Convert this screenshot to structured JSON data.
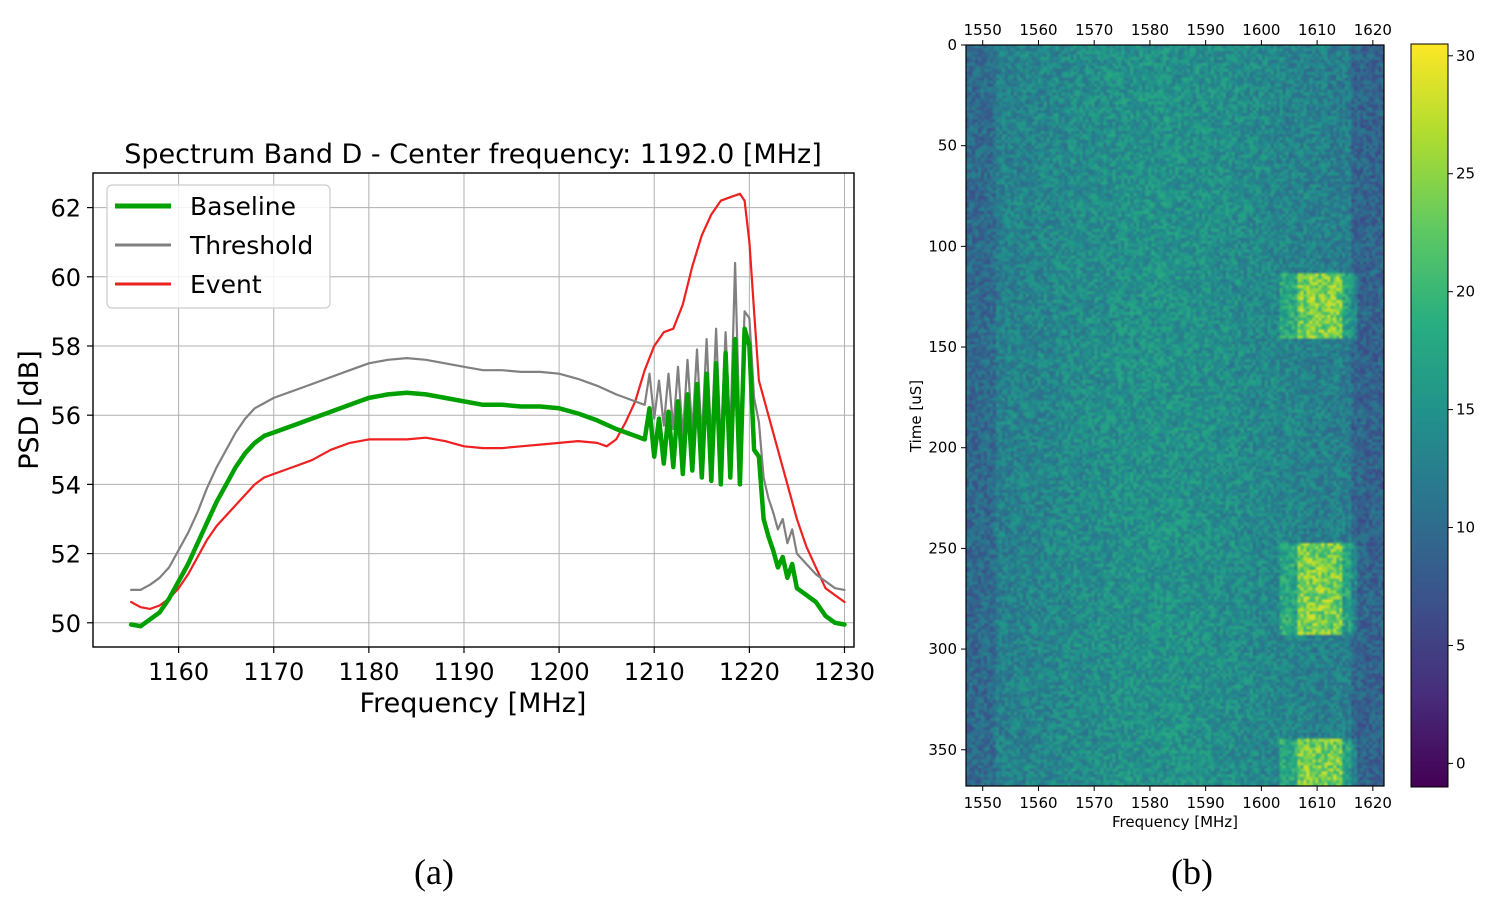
{
  "chart_data": [
    {
      "panel_label": "(a)",
      "type": "line",
      "title": "Spectrum Band D - Center frequency: 1192.0 [MHz]",
      "xlabel": "Frequency [MHz]",
      "ylabel": "PSD [dB]",
      "xlim": [
        1151,
        1231
      ],
      "ylim": [
        49.3,
        63
      ],
      "xticks": [
        1160,
        1170,
        1180,
        1190,
        1200,
        1210,
        1220,
        1230
      ],
      "yticks": [
        50,
        52,
        54,
        56,
        58,
        60,
        62
      ],
      "grid": true,
      "legend_position": "top-left",
      "series": [
        {
          "name": "Baseline",
          "color": "#00a000",
          "width": 4.5,
          "x": [
            1155,
            1156,
            1157,
            1158,
            1159,
            1160,
            1161,
            1162,
            1163,
            1164,
            1165,
            1166,
            1167,
            1168,
            1169,
            1170,
            1172,
            1174,
            1176,
            1178,
            1180,
            1182,
            1184,
            1186,
            1188,
            1190,
            1192,
            1194,
            1196,
            1198,
            1200,
            1202,
            1204,
            1206,
            1208,
            1209,
            1209.5,
            1210,
            1210.5,
            1211,
            1211.5,
            1212,
            1212.5,
            1213,
            1213.5,
            1214,
            1214.5,
            1215,
            1215.5,
            1216,
            1216.5,
            1217,
            1217.5,
            1218,
            1218.5,
            1219,
            1219.5,
            1220,
            1220.5,
            1221,
            1221.5,
            1222,
            1222.5,
            1223,
            1223.5,
            1224,
            1224.5,
            1225,
            1226,
            1227,
            1228,
            1229,
            1230
          ],
          "y": [
            49.95,
            49.9,
            50.1,
            50.3,
            50.7,
            51.2,
            51.7,
            52.3,
            52.9,
            53.5,
            54.0,
            54.5,
            54.9,
            55.2,
            55.4,
            55.5,
            55.7,
            55.9,
            56.1,
            56.3,
            56.5,
            56.6,
            56.65,
            56.6,
            56.5,
            56.4,
            56.3,
            56.3,
            56.25,
            56.25,
            56.2,
            56.05,
            55.85,
            55.6,
            55.4,
            55.3,
            56.2,
            54.8,
            55.9,
            54.6,
            56.1,
            54.5,
            56.4,
            54.3,
            56.6,
            54.4,
            56.9,
            54.2,
            57.2,
            54.1,
            57.5,
            54.0,
            57.8,
            54.2,
            58.2,
            54.0,
            58.5,
            58.0,
            55.0,
            54.8,
            53.0,
            52.5,
            52.1,
            51.6,
            51.9,
            51.3,
            51.7,
            51.0,
            50.8,
            50.6,
            50.2,
            50.0,
            49.95
          ]
        },
        {
          "name": "Threshold",
          "color": "#808080",
          "width": 2.2,
          "x": [
            1155,
            1156,
            1157,
            1158,
            1159,
            1160,
            1161,
            1162,
            1163,
            1164,
            1165,
            1166,
            1167,
            1168,
            1169,
            1170,
            1172,
            1174,
            1176,
            1178,
            1180,
            1182,
            1184,
            1186,
            1188,
            1190,
            1192,
            1194,
            1196,
            1198,
            1200,
            1202,
            1204,
            1206,
            1208,
            1209,
            1209.5,
            1210,
            1210.5,
            1211,
            1211.5,
            1212,
            1212.5,
            1213,
            1213.5,
            1214,
            1214.5,
            1215,
            1215.5,
            1216,
            1216.5,
            1217,
            1217.5,
            1218,
            1218.5,
            1219,
            1219.5,
            1220,
            1220.5,
            1221,
            1221.5,
            1222,
            1222.5,
            1223,
            1223.5,
            1224,
            1224.5,
            1225,
            1226,
            1227,
            1228,
            1229,
            1230
          ],
          "y": [
            50.95,
            50.95,
            51.1,
            51.3,
            51.6,
            52.1,
            52.6,
            53.2,
            53.9,
            54.5,
            55.0,
            55.5,
            55.9,
            56.2,
            56.35,
            56.5,
            56.7,
            56.9,
            57.1,
            57.3,
            57.5,
            57.6,
            57.65,
            57.6,
            57.5,
            57.4,
            57.3,
            57.3,
            57.25,
            57.25,
            57.2,
            57.05,
            56.85,
            56.6,
            56.4,
            56.3,
            57.2,
            55.9,
            57.0,
            55.7,
            57.2,
            55.6,
            57.4,
            55.4,
            57.6,
            55.5,
            57.9,
            55.3,
            58.2,
            55.2,
            58.5,
            55.1,
            58.4,
            55.4,
            60.4,
            55.2,
            59.0,
            58.8,
            56.5,
            55.8,
            54.2,
            53.6,
            53.2,
            52.7,
            53.0,
            52.3,
            52.7,
            52.0,
            51.7,
            51.4,
            51.2,
            51.0,
            50.95
          ]
        },
        {
          "name": "Event",
          "color": "#ee2020",
          "width": 2.2,
          "x": [
            1155,
            1156,
            1157,
            1158,
            1159,
            1160,
            1161,
            1162,
            1163,
            1164,
            1165,
            1166,
            1167,
            1168,
            1169,
            1170,
            1172,
            1174,
            1176,
            1178,
            1180,
            1182,
            1184,
            1186,
            1188,
            1190,
            1192,
            1194,
            1196,
            1198,
            1200,
            1202,
            1204,
            1205,
            1206,
            1207,
            1208,
            1209,
            1210,
            1211,
            1212,
            1213,
            1214,
            1215,
            1216,
            1217,
            1218,
            1219,
            1219.5,
            1220,
            1220.5,
            1221,
            1222,
            1223,
            1224,
            1225,
            1226,
            1227,
            1228,
            1229,
            1230
          ],
          "y": [
            50.6,
            50.45,
            50.4,
            50.5,
            50.7,
            51.0,
            51.4,
            51.9,
            52.4,
            52.8,
            53.1,
            53.4,
            53.7,
            54.0,
            54.2,
            54.3,
            54.5,
            54.7,
            55.0,
            55.2,
            55.3,
            55.3,
            55.3,
            55.35,
            55.25,
            55.1,
            55.05,
            55.05,
            55.1,
            55.15,
            55.2,
            55.25,
            55.2,
            55.1,
            55.3,
            55.8,
            56.4,
            57.3,
            58.0,
            58.4,
            58.5,
            59.2,
            60.3,
            61.2,
            61.8,
            62.2,
            62.3,
            62.4,
            62.2,
            61.0,
            59.0,
            57.0,
            56.0,
            55.0,
            54.0,
            53.0,
            52.2,
            51.6,
            51.0,
            50.8,
            50.6
          ]
        }
      ]
    },
    {
      "panel_label": "(b)",
      "type": "heatmap",
      "title": "",
      "xlabel": "Frequency [MHz]",
      "ylabel": "Time [uS]",
      "xlim": [
        1547,
        1622
      ],
      "ylim": [
        368,
        0
      ],
      "xticks": [
        1550,
        1560,
        1570,
        1580,
        1590,
        1600,
        1610,
        1620
      ],
      "yticks": [
        0,
        50,
        100,
        150,
        200,
        250,
        300,
        350
      ],
      "colormap": "viridis",
      "colorbar": {
        "min": -1,
        "max": 30.5,
        "ticks": [
          0,
          5,
          10,
          15,
          20,
          25,
          30
        ]
      },
      "background_level": 15,
      "interference_bursts": [
        {
          "time_start": 112,
          "time_end": 145,
          "freq_start": 1603,
          "freq_end": 1617,
          "peak_level": 27
        },
        {
          "time_start": 246,
          "time_end": 292,
          "freq_start": 1603,
          "freq_end": 1617,
          "peak_level": 27
        },
        {
          "time_start": 343,
          "time_end": 368,
          "freq_start": 1603,
          "freq_end": 1617,
          "peak_level": 27
        }
      ]
    }
  ]
}
